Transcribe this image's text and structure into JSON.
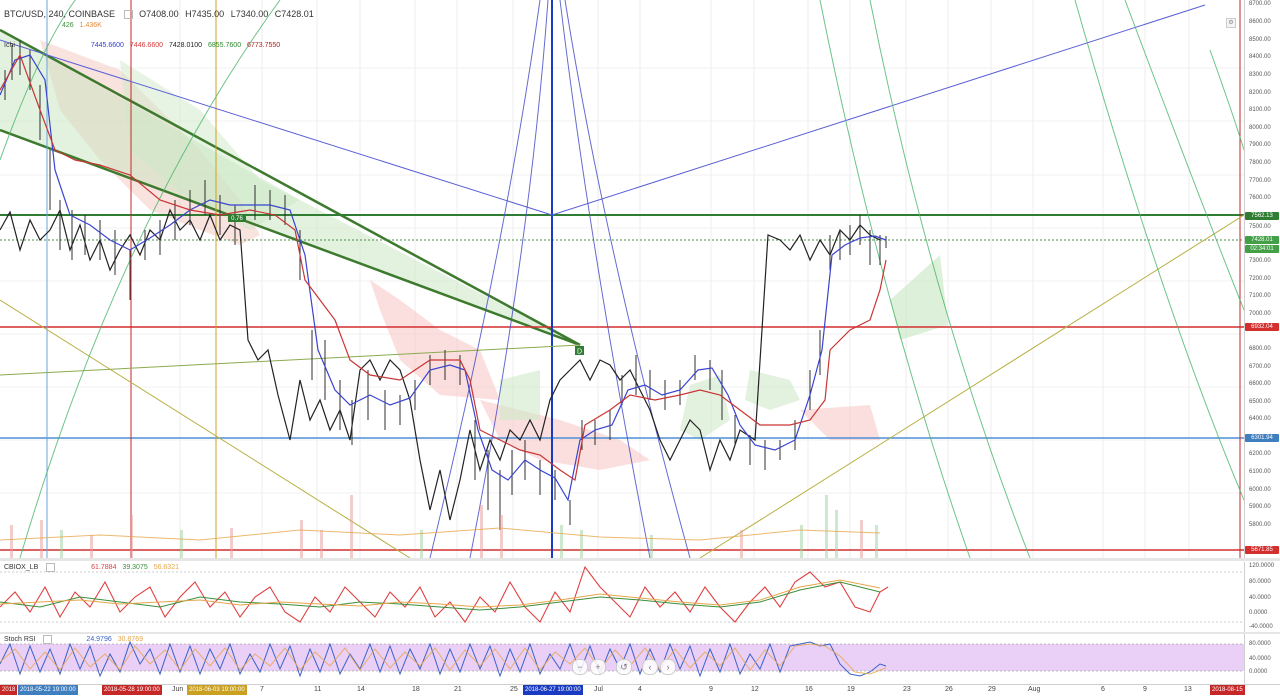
{
  "symbol": {
    "title": "BTC/USD, 240, COINBASE",
    "open": "O7408.00",
    "high": "H7435.00",
    "low": "L7340.00",
    "close": "C7428.01"
  },
  "volume": {
    "v1": "426",
    "v2": "1.436K"
  },
  "ichimoku": {
    "label": "Ichi",
    "values": [
      "7445.6600",
      "7446.6600",
      "7428.0100",
      "6855.7600",
      "6773.7550"
    ],
    "colors": [
      "#2f3fd6",
      "#d23b3b",
      "#222222",
      "#2e8b2e",
      "#b22222"
    ]
  },
  "cbi": {
    "label": "CBIOX_LB",
    "values": [
      "61.7884",
      "39.3075",
      "56.6321"
    ],
    "colors": [
      "#e04040",
      "#3a8f3a",
      "#e6a64a"
    ]
  },
  "stoch": {
    "label": "Stoch RSI",
    "values": [
      "24.9796",
      "30.8769"
    ],
    "colors": [
      "#3a63c8",
      "#e6a64a"
    ]
  },
  "price_axis": [
    "8700.00",
    "8600.00",
    "8500.00",
    "8400.00",
    "8300.00",
    "8200.00",
    "8100.00",
    "8000.00",
    "7900.00",
    "7800.00",
    "7700.00",
    "7600.00",
    "7500.00",
    "7400.00",
    "7300.00",
    "7200.00",
    "7100.00",
    "7000.00",
    "6900.00",
    "6800.00",
    "6700.00",
    "6600.00",
    "6500.00",
    "6400.00",
    "6300.00",
    "6200.00",
    "6100.00",
    "6000.00",
    "5900.00",
    "5800.00"
  ],
  "price_tags": [
    {
      "text": "7562.13",
      "color": "#2e7d32"
    },
    {
      "text": "7428.01",
      "color": "#43a047"
    },
    {
      "text": "02:34:01",
      "color": "#43a047"
    },
    {
      "text": "6932.04",
      "color": "#d32f2f"
    },
    {
      "text": "6301.94",
      "color": "#3f7fbf"
    },
    {
      "text": "5671.85",
      "color": "#d32f2f"
    }
  ],
  "cbi_axis": [
    "120.0000",
    "80.0000",
    "40.0000",
    "0.0000",
    "-40.0000"
  ],
  "stoch_axis": [
    "80.0000",
    "40.0000",
    "0.0000"
  ],
  "time_axis": {
    "labels": [
      "Jun",
      "7",
      "11",
      "14",
      "18",
      "21",
      "25",
      "Jul",
      "4",
      "9",
      "12",
      "16",
      "19",
      "23",
      "26",
      "29",
      "Aug",
      "6",
      "9",
      "13"
    ],
    "flags": [
      {
        "text": "2018",
        "color": "#c62828"
      },
      {
        "text": "2018-05-22 19:00:00",
        "color": "#3f7fbf"
      },
      {
        "text": "2018-05-28 19:00:00",
        "color": "#c62828"
      },
      {
        "text": "2018-06-03 19:00:00",
        "color": "#c9a020"
      },
      {
        "text": "2018-06-27 19:00:00",
        "color": "#1a3bc1"
      },
      {
        "text": "2018-08-15",
        "color": "#c62828"
      }
    ]
  },
  "drawing_label": "D",
  "fib_label": "0.76",
  "nav": [
    "−",
    "+",
    "↺",
    "‹",
    "›"
  ]
}
